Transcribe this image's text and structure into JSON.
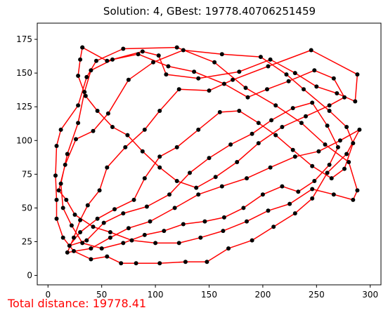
{
  "chart_data": {
    "type": "line",
    "title": "Solution: 4, GBest: 19778.40706251459",
    "footer_text": "Total distance: 19778.41",
    "xlim": [
      -10,
      310
    ],
    "ylim": [
      -7,
      187
    ],
    "x_ticks": [
      0,
      50,
      100,
      150,
      200,
      250,
      300
    ],
    "y_ticks": [
      0,
      25,
      50,
      75,
      100,
      125,
      150,
      175
    ],
    "colors": {
      "route": "#ff0000",
      "points": "#000000",
      "footer": "#ff0000",
      "axes": "#000000"
    },
    "series": [
      {
        "name": "route",
        "closed": true,
        "points": [
          [
            32,
            169
          ],
          [
            55,
            159
          ],
          [
            88,
            166
          ],
          [
            103,
            163
          ],
          [
            110,
            149
          ],
          [
            140,
            146
          ],
          [
            178,
            151
          ],
          [
            207,
            160
          ],
          [
            230,
            150
          ],
          [
            250,
            140
          ],
          [
            269,
            135
          ],
          [
            286,
            129
          ],
          [
            288,
            149
          ],
          [
            245,
            167
          ],
          [
            205,
            155
          ],
          [
            172,
            145
          ],
          [
            150,
            137
          ],
          [
            122,
            138
          ],
          [
            104,
            122
          ],
          [
            90,
            108
          ],
          [
            72,
            95
          ],
          [
            55,
            80
          ],
          [
            48,
            63
          ],
          [
            37,
            52
          ],
          [
            30,
            41
          ],
          [
            24,
            28
          ],
          [
            18,
            17
          ],
          [
            40,
            20
          ],
          [
            58,
            28
          ],
          [
            75,
            35
          ],
          [
            95,
            40
          ],
          [
            118,
            50
          ],
          [
            140,
            60
          ],
          [
            162,
            66
          ],
          [
            185,
            72
          ],
          [
            207,
            80
          ],
          [
            230,
            88
          ],
          [
            252,
            92
          ],
          [
            272,
            100
          ],
          [
            290,
            108
          ],
          [
            278,
            90
          ],
          [
            260,
            76
          ],
          [
            246,
            57
          ],
          [
            230,
            46
          ],
          [
            210,
            36
          ],
          [
            190,
            26
          ],
          [
            168,
            20
          ],
          [
            148,
            10
          ],
          [
            128,
            10
          ],
          [
            104,
            9
          ],
          [
            82,
            9
          ],
          [
            68,
            9
          ],
          [
            55,
            14
          ],
          [
            40,
            12
          ],
          [
            24,
            18
          ],
          [
            14,
            28
          ],
          [
            8,
            42
          ],
          [
            8,
            56
          ],
          [
            7,
            74
          ],
          [
            8,
            96
          ],
          [
            12,
            108
          ],
          [
            28,
            126
          ],
          [
            36,
            147
          ],
          [
            45,
            159
          ],
          [
            70,
            168
          ],
          [
            120,
            169
          ],
          [
            155,
            158
          ],
          [
            184,
            139
          ],
          [
            212,
            126
          ],
          [
            236,
            113
          ],
          [
            258,
            97
          ],
          [
            280,
            84
          ],
          [
            288,
            63
          ],
          [
            284,
            56
          ],
          [
            266,
            60
          ],
          [
            246,
            64
          ],
          [
            225,
            53
          ],
          [
            205,
            48
          ],
          [
            185,
            40
          ],
          [
            163,
            33
          ],
          [
            142,
            28
          ],
          [
            122,
            24
          ],
          [
            100,
            24
          ],
          [
            78,
            26
          ],
          [
            58,
            32
          ],
          [
            42,
            36
          ],
          [
            25,
            45
          ],
          [
            17,
            56
          ],
          [
            10,
            63
          ],
          [
            16,
            82
          ],
          [
            26,
            101
          ],
          [
            42,
            107
          ],
          [
            56,
            120
          ],
          [
            75,
            145
          ],
          [
            98,
            158
          ],
          [
            126,
            167
          ],
          [
            162,
            164
          ],
          [
            198,
            162
          ],
          [
            222,
            149
          ],
          [
            238,
            138
          ],
          [
            262,
            122
          ],
          [
            278,
            110
          ],
          [
            284,
            98
          ],
          [
            276,
            79
          ],
          [
            264,
            72
          ],
          [
            246,
            81
          ],
          [
            228,
            93
          ],
          [
            212,
            104
          ],
          [
            196,
            113
          ],
          [
            178,
            122
          ],
          [
            160,
            121
          ],
          [
            140,
            108
          ],
          [
            120,
            95
          ],
          [
            104,
            88
          ],
          [
            90,
            72
          ],
          [
            80,
            56
          ],
          [
            62,
            49
          ],
          [
            46,
            42
          ],
          [
            30,
            32
          ],
          [
            20,
            22
          ],
          [
            36,
            26
          ],
          [
            52,
            39
          ],
          [
            70,
            46
          ],
          [
            92,
            51
          ],
          [
            113,
            60
          ],
          [
            132,
            76
          ],
          [
            150,
            87
          ],
          [
            170,
            97
          ],
          [
            190,
            105
          ],
          [
            208,
            115
          ],
          [
            228,
            124
          ],
          [
            246,
            128
          ],
          [
            260,
            111
          ],
          [
            270,
            95
          ],
          [
            262,
            82
          ],
          [
            248,
            70
          ],
          [
            233,
            62
          ],
          [
            218,
            66
          ],
          [
            200,
            60
          ],
          [
            182,
            50
          ],
          [
            164,
            43
          ],
          [
            146,
            40
          ],
          [
            126,
            38
          ],
          [
            108,
            33
          ],
          [
            90,
            30
          ],
          [
            70,
            24
          ],
          [
            50,
            20
          ],
          [
            32,
            24
          ],
          [
            22,
            37
          ],
          [
            14,
            50
          ],
          [
            12,
            68
          ],
          [
            18,
            90
          ],
          [
            28,
            113
          ],
          [
            34,
            136
          ],
          [
            40,
            152
          ],
          [
            60,
            160
          ],
          [
            84,
            164
          ],
          [
            112,
            155
          ],
          [
            136,
            151
          ],
          [
            164,
            142
          ],
          [
            186,
            132
          ],
          [
            204,
            138
          ],
          [
            224,
            144
          ],
          [
            248,
            152
          ],
          [
            266,
            146
          ],
          [
            276,
            132
          ],
          [
            262,
            126
          ],
          [
            240,
            118
          ],
          [
            218,
            110
          ],
          [
            196,
            98
          ],
          [
            176,
            84
          ],
          [
            156,
            73
          ],
          [
            138,
            65
          ],
          [
            120,
            70
          ],
          [
            104,
            80
          ],
          [
            88,
            92
          ],
          [
            74,
            104
          ],
          [
            60,
            110
          ],
          [
            46,
            122
          ],
          [
            35,
            133
          ],
          [
            28,
            148
          ],
          [
            30,
            160
          ],
          [
            32,
            169
          ]
        ]
      }
    ]
  }
}
